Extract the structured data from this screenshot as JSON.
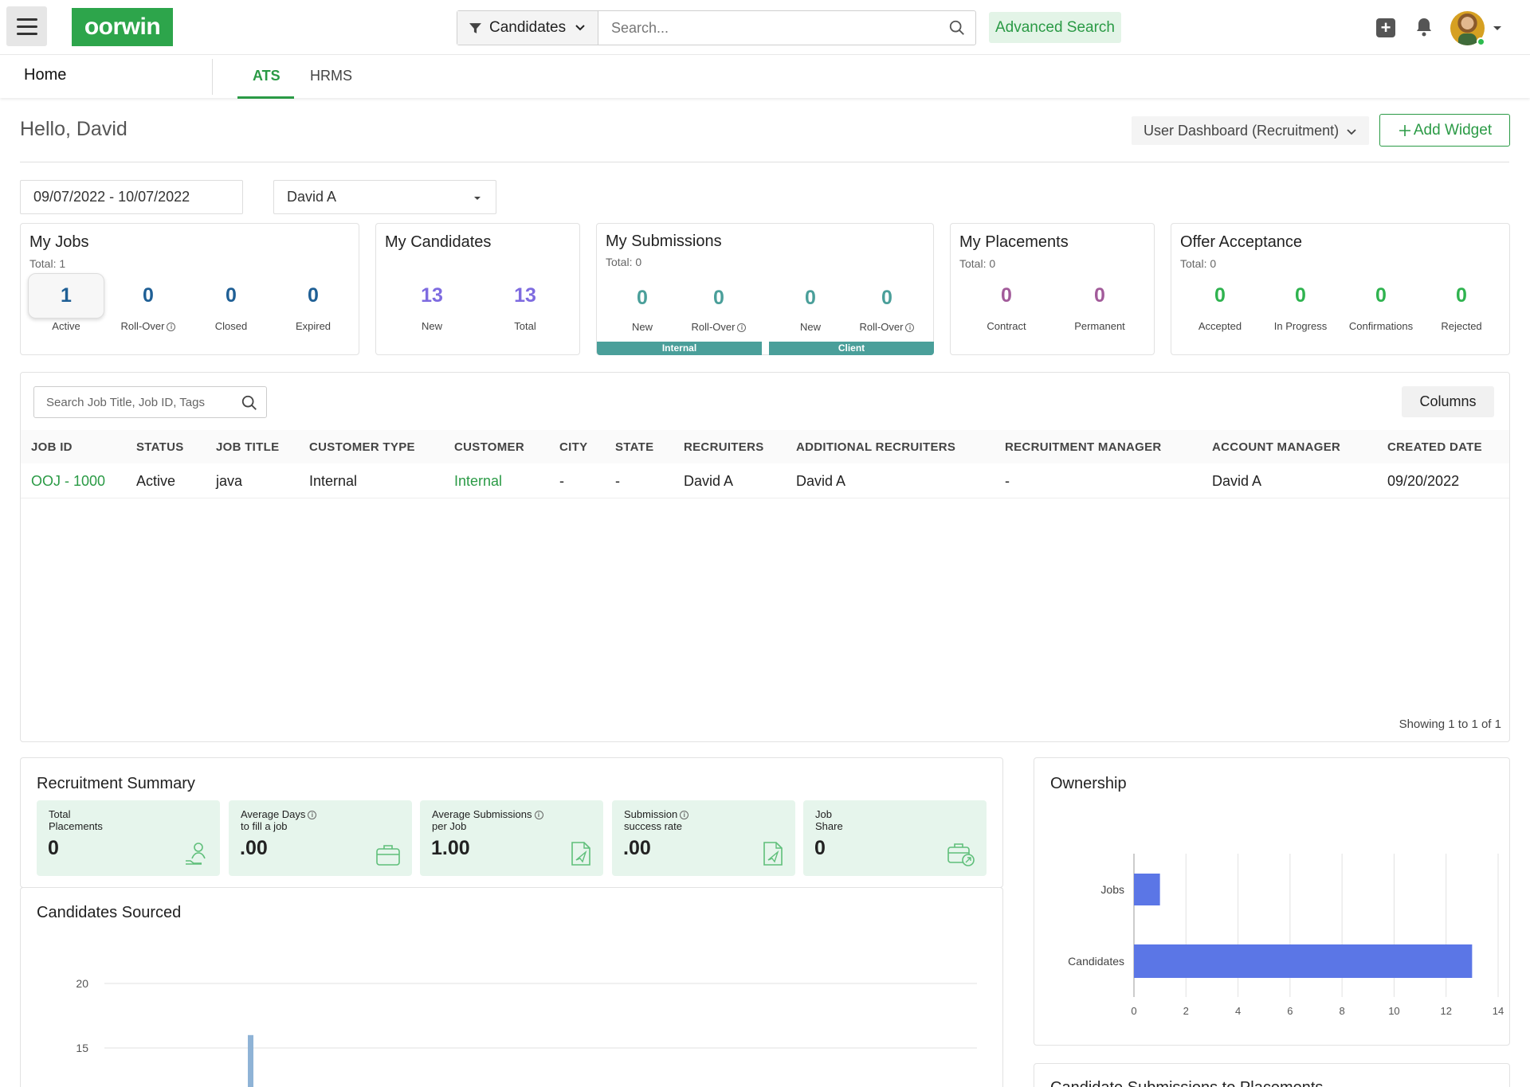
{
  "header": {
    "logo_text": "oorwin",
    "search_type": "Candidates",
    "search_placeholder": "Search...",
    "advanced_search": "Advanced Search"
  },
  "nav": {
    "home": "Home",
    "tabs": [
      {
        "label": "ATS",
        "active": true
      },
      {
        "label": "HRMS",
        "active": false
      }
    ]
  },
  "greeting": "Hello, David",
  "dashboard_select": "User Dashboard (Recruitment)",
  "add_widget": "Add Widget",
  "filters": {
    "date_range": "09/07/2022 - 10/07/2022",
    "user": "David A"
  },
  "cards": {
    "my_jobs": {
      "title": "My Jobs",
      "total": "Total: 1",
      "stats": [
        {
          "value": "1",
          "label": "Active"
        },
        {
          "value": "0",
          "label": "Roll-Over"
        },
        {
          "value": "0",
          "label": "Closed"
        },
        {
          "value": "0",
          "label": "Expired"
        }
      ]
    },
    "my_candidates": {
      "title": "My Candidates",
      "stats": [
        {
          "value": "13",
          "label": "New"
        },
        {
          "value": "13",
          "label": "Total"
        }
      ]
    },
    "my_submissions": {
      "title": "My Submissions",
      "total": "Total: 0",
      "stats": [
        {
          "value": "0",
          "label": "New"
        },
        {
          "value": "0",
          "label": "Roll-Over"
        },
        {
          "value": "0",
          "label": "New"
        },
        {
          "value": "0",
          "label": "Roll-Over"
        }
      ],
      "bands": [
        "Internal",
        "Client"
      ]
    },
    "my_placements": {
      "title": "My Placements",
      "total": "Total: 0",
      "stats": [
        {
          "value": "0",
          "label": "Contract"
        },
        {
          "value": "0",
          "label": "Permanent"
        }
      ]
    },
    "offer_acceptance": {
      "title": "Offer Acceptance",
      "total": "Total: 0",
      "stats": [
        {
          "value": "0",
          "label": "Accepted"
        },
        {
          "value": "0",
          "label": "In Progress"
        },
        {
          "value": "0",
          "label": "Confirmations"
        },
        {
          "value": "0",
          "label": "Rejected"
        }
      ]
    }
  },
  "jobs_table": {
    "search_placeholder": "Search Job Title, Job ID, Tags",
    "columns_button": "Columns",
    "headers": [
      "JOB ID",
      "STATUS",
      "JOB TITLE",
      "CUSTOMER TYPE",
      "CUSTOMER",
      "CITY",
      "STATE",
      "RECRUITERS",
      "ADDITIONAL RECRUITERS",
      "RECRUITMENT MANAGER",
      "ACCOUNT MANAGER",
      "CREATED DATE"
    ],
    "rows": [
      [
        "OOJ - 1000",
        "Active",
        "java",
        "Internal",
        "Internal",
        "-",
        "-",
        "David A",
        "David A",
        "-",
        "David A",
        "09/20/2022"
      ]
    ],
    "showing": "Showing 1 to 1 of 1"
  },
  "recruitment_summary": {
    "title": "Recruitment Summary",
    "tiles": [
      {
        "label_line1": "Total",
        "label_line2": "Placements",
        "value": "0",
        "icon": "person-hand-icon"
      },
      {
        "label_line1": "Average Days",
        "label_line2": "to fill a job",
        "value": ".00",
        "icon": "briefcase-icon"
      },
      {
        "label_line1": "Average Submissions",
        "label_line2": "per Job",
        "value": "1.00",
        "icon": "document-send-icon"
      },
      {
        "label_line1": "Submission",
        "label_line2": "success rate",
        "value": ".00",
        "icon": "document-send-icon"
      },
      {
        "label_line1": "Job",
        "label_line2": "Share",
        "value": "0",
        "icon": "briefcase-share-icon"
      }
    ]
  },
  "candidates_sourced": {
    "title": "Candidates Sourced"
  },
  "ownership": {
    "title": "Ownership"
  },
  "candidate_submissions": {
    "title": "Candidate Submissions to Placements"
  },
  "colors": {
    "brand_green": "#2da54b",
    "blue_stat": "#1f5f95",
    "purple_stat": "#7e6be0",
    "teal_stat": "#4a9f9a",
    "mauve_stat": "#a25b9a",
    "green_stat": "#2fb34f",
    "bar_blue": "#5b76e6"
  },
  "chart_data": [
    {
      "type": "line",
      "title": "Candidates Sourced",
      "y_ticks": [
        15,
        20
      ],
      "series": [
        {
          "values": [
            16
          ]
        }
      ]
    },
    {
      "type": "bar",
      "orientation": "horizontal",
      "title": "Ownership",
      "categories": [
        "Jobs",
        "Candidates"
      ],
      "values": [
        1,
        13
      ],
      "xlim": [
        0,
        14
      ],
      "x_ticks": [
        0,
        2,
        4,
        6,
        8,
        10,
        12,
        14
      ]
    }
  ]
}
